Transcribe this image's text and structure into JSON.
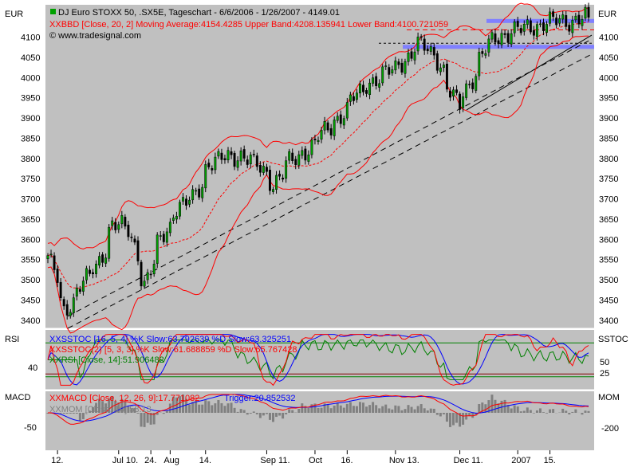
{
  "header": {
    "title": "DJ Euro STOXX 50, .SX5E, Tageschart - 6/6/2006 - 1/26/2007 - 4149.01",
    "indicator": "BBD [Close, 20, 2] Moving Average:4154.4285 Upper Band:4208.135941 Lower Band:4100.721059",
    "copyright": "© www.tradesignal.com"
  },
  "currency_left": "EUR",
  "currency_right": "EUR",
  "colors": {
    "panel_bg": "#c0c0c0",
    "candle_up": "#00a000",
    "candle_down": "#000000",
    "bollinger": "#ff0000",
    "trendline": "#000000",
    "support_band": "#8080ff",
    "stoch_k": "#0000ff",
    "stoch_d": "#ff0000",
    "rsi": "#008000",
    "macd": "#ff0000",
    "trigger": "#0000ff",
    "momentum": "#808080"
  },
  "chart_data": [
    {
      "type": "candlestick",
      "title": "DJ Euro STOXX 50, .SX5E, Tageschart - 6/6/2006 - 1/26/2007 - 4149.01",
      "ylabel": "EUR",
      "ylim": [
        3380,
        4180
      ],
      "yticks": [
        3400,
        3450,
        3500,
        3550,
        3600,
        3650,
        3700,
        3750,
        3800,
        3850,
        3900,
        3950,
        4000,
        4050,
        4100
      ],
      "x_ticks": [
        "12.",
        "Jul 10.",
        "24.",
        "Aug",
        "14.",
        "Sep 11.",
        "Oct",
        "16.",
        "Nov 13.",
        "Dec 11.",
        "2007",
        "15."
      ],
      "close_anchors": [
        {
          "date": "2006-06-06",
          "close": 3560
        },
        {
          "date": "2006-06-13",
          "close": 3420
        },
        {
          "date": "2006-06-20",
          "close": 3490
        },
        {
          "date": "2006-06-27",
          "close": 3530
        },
        {
          "date": "2006-07-04",
          "close": 3640
        },
        {
          "date": "2006-07-11",
          "close": 3620
        },
        {
          "date": "2006-07-18",
          "close": 3490
        },
        {
          "date": "2006-07-25",
          "close": 3600
        },
        {
          "date": "2006-08-01",
          "close": 3680
        },
        {
          "date": "2006-08-08",
          "close": 3700
        },
        {
          "date": "2006-08-15",
          "close": 3790
        },
        {
          "date": "2006-08-22",
          "close": 3800
        },
        {
          "date": "2006-08-29",
          "close": 3810
        },
        {
          "date": "2006-09-05",
          "close": 3780
        },
        {
          "date": "2006-09-12",
          "close": 3740
        },
        {
          "date": "2006-09-19",
          "close": 3790
        },
        {
          "date": "2006-09-26",
          "close": 3820
        },
        {
          "date": "2006-10-03",
          "close": 3860
        },
        {
          "date": "2006-10-10",
          "close": 3900
        },
        {
          "date": "2006-10-17",
          "close": 3950
        },
        {
          "date": "2006-10-24",
          "close": 3990
        },
        {
          "date": "2006-10-31",
          "close": 4010
        },
        {
          "date": "2006-11-07",
          "close": 4040
        },
        {
          "date": "2006-11-14",
          "close": 4080
        },
        {
          "date": "2006-11-21",
          "close": 4060
        },
        {
          "date": "2006-11-28",
          "close": 3960
        },
        {
          "date": "2006-12-01",
          "close": 3930
        },
        {
          "date": "2006-12-08",
          "close": 4010
        },
        {
          "date": "2006-12-15",
          "close": 4090
        },
        {
          "date": "2006-12-22",
          "close": 4110
        },
        {
          "date": "2006-12-29",
          "close": 4120
        },
        {
          "date": "2007-01-05",
          "close": 4130
        },
        {
          "date": "2007-01-12",
          "close": 4140
        },
        {
          "date": "2007-01-19",
          "close": 4140
        },
        {
          "date": "2007-01-26",
          "close": 4149
        }
      ],
      "bollinger": {
        "period": 20,
        "stddev": 2,
        "last_ma": 4154.4285,
        "last_upper": 4208.135941,
        "last_lower": 4100.721059
      },
      "support_levels": [
        4140,
        4076
      ],
      "grid": false
    },
    {
      "type": "line",
      "panel": "oscillators",
      "left_label": "RSI",
      "right_label": "SSTOC",
      "left_ticks": [
        40
      ],
      "right_ticks": [
        50,
        25
      ],
      "series": [
        {
          "name": "SSTOC [16, 5, 4] %K Slow:63.792639 %D Slow:63.325251"
        },
        {
          "name": "SSTOC(2) [5, 3, 3] %K Slow:61.688859 %D Slow:65.767428"
        },
        {
          "name": "RSI [Close, 14]:51.906482"
        }
      ]
    },
    {
      "type": "bar",
      "panel": "macd",
      "left_label": "MACD",
      "right_label": "MOM",
      "left_ticks": [
        -50
      ],
      "right_ticks": [
        -200
      ],
      "series": [
        {
          "name": "MACD [Close, 12, 26, 9]:17.771082"
        },
        {
          "name": "Trigger:20.852532"
        },
        {
          "name": "MOM [Close, 10]:58.13"
        }
      ]
    }
  ]
}
